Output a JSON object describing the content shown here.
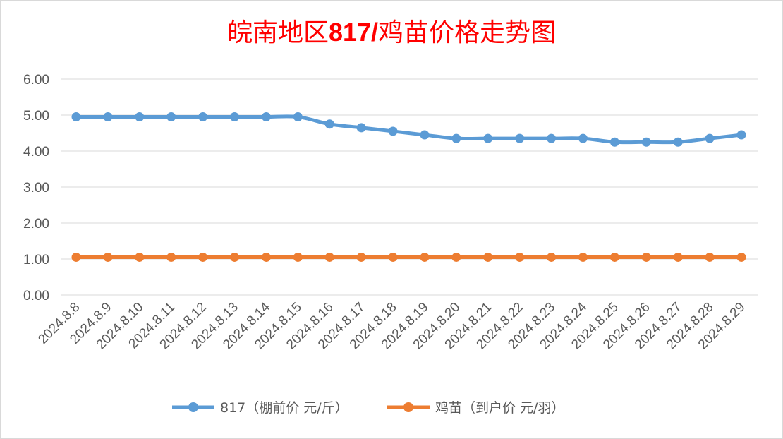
{
  "chart_data": {
    "type": "line",
    "title_prefix": "皖南地区",
    "title_bold": "817/",
    "title_suffix": "鸡苗价格走势图",
    "x": [
      "2024.8.8",
      "2024.8.9",
      "2024.8.10",
      "2024.8.11",
      "2024.8.12",
      "2024.8.13",
      "2024.8.14",
      "2024.8.15",
      "2024.8.16",
      "2024.8.17",
      "2024.8.18",
      "2024.8.19",
      "2024.8.20",
      "2024.8.21",
      "2024.8.22",
      "2024.8.23",
      "2024.8.24",
      "2024.8.25",
      "2024.8.26",
      "2024.8.27",
      "2024.8.28",
      "2024.8.29"
    ],
    "y_ticks": [
      "0.00",
      "1.00",
      "2.00",
      "3.00",
      "4.00",
      "5.00",
      "6.00"
    ],
    "ylim": [
      0,
      6
    ],
    "grid": true,
    "legend_position": "bottom",
    "series": [
      {
        "name": "817（棚前价 元/斤）",
        "color": "#5b9bd5",
        "values": [
          4.95,
          4.95,
          4.95,
          4.95,
          4.95,
          4.95,
          4.95,
          4.95,
          4.75,
          4.65,
          4.55,
          4.45,
          4.35,
          4.35,
          4.35,
          4.35,
          4.35,
          4.25,
          4.25,
          4.25,
          4.35,
          4.45
        ]
      },
      {
        "name": "鸡苗（到户价 元/羽）",
        "color": "#ed7d31",
        "values": [
          1.05,
          1.05,
          1.05,
          1.05,
          1.05,
          1.05,
          1.05,
          1.05,
          1.05,
          1.05,
          1.05,
          1.05,
          1.05,
          1.05,
          1.05,
          1.05,
          1.05,
          1.05,
          1.05,
          1.05,
          1.05,
          1.05
        ]
      }
    ]
  }
}
